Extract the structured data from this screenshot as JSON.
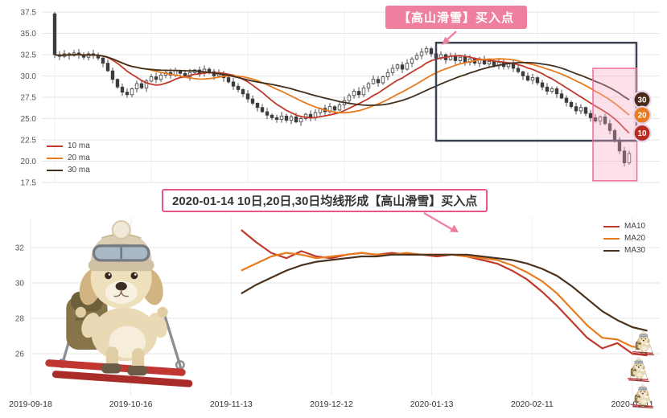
{
  "chart_data": [
    {
      "type": "candlestick",
      "title": "",
      "ylim": [
        17.5,
        37.5
      ],
      "yticks": [
        37.5,
        35.0,
        32.5,
        30.0,
        27.5,
        25.0,
        22.5,
        20.0,
        17.5
      ],
      "legend": [
        {
          "label": "10 ma",
          "color": "#c0392b"
        },
        {
          "label": "20 ma",
          "color": "#e87b1e"
        },
        {
          "label": "30 ma",
          "color": "#42301e"
        }
      ],
      "ma": [
        {
          "window": 10,
          "color": "#c0392b"
        },
        {
          "window": 20,
          "color": "#e87b1e"
        },
        {
          "window": 30,
          "color": "#42301e"
        }
      ],
      "first_candle": [
        37.3,
        37.5,
        32.1,
        32.5
      ],
      "closes": [
        32.5,
        32.3,
        32.6,
        32.4,
        32.7,
        32.5,
        32.2,
        32.6,
        32.4,
        32.1,
        31.5,
        30.6,
        29.6,
        28.7,
        28.1,
        27.8,
        28.5,
        29.1,
        28.6,
        29.4,
        29.9,
        29.6,
        30.1,
        30.4,
        30.1,
        30.6,
        30.3,
        29.9,
        30.4,
        30.7,
        30.3,
        30.8,
        30.5,
        30.0,
        30.3,
        29.8,
        29.3,
        28.8,
        28.4,
        27.9,
        27.3,
        26.8,
        26.3,
        25.8,
        25.4,
        25.1,
        24.9,
        25.3,
        24.8,
        25.2,
        24.6,
        25.0,
        25.5,
        25.1,
        25.7,
        26.2,
        25.8,
        26.4,
        26.0,
        26.6,
        27.1,
        27.7,
        28.2,
        27.8,
        28.6,
        29.1,
        29.6,
        29.2,
        29.9,
        30.4,
        30.9,
        31.3,
        30.8,
        31.5,
        32.0,
        32.4,
        32.8,
        33.2,
        32.6,
        32.1,
        32.5,
        31.9,
        32.3,
        31.8,
        32.2,
        31.6,
        32.0,
        31.5,
        31.9,
        31.4,
        31.7,
        31.2,
        31.6,
        31.1,
        31.4,
        30.9,
        30.5,
        30.0,
        29.5,
        29.8,
        29.2,
        28.7,
        28.2,
        28.5,
        27.9,
        27.4,
        26.9,
        26.4,
        25.9,
        26.3,
        25.6,
        25.1,
        24.7,
        25.2,
        24.4,
        23.6,
        22.5,
        21.2,
        19.8,
        20.9
      ],
      "highlight_rect": {
        "day_start": 79,
        "day_end": 120.5,
        "v_top": 33.9,
        "v_bottom": 22.4,
        "color": "#3d4350"
      },
      "highlight_band": {
        "day_start": 111.5,
        "day_end": 120.6,
        "v_top": 30.9,
        "v_bottom": 17.7,
        "fill": "#f7a8c4",
        "border": "#ef6a9b"
      },
      "badges": [
        {
          "label": "30",
          "color": "#4a2a18"
        },
        {
          "label": "20",
          "color": "#e87b1e"
        },
        {
          "label": "10",
          "color": "#b92d21"
        }
      ],
      "callout": {
        "text": "【高山滑雪】买入点",
        "bg": "#ee7f9e",
        "text_color": "#ffffff"
      }
    },
    {
      "type": "line",
      "yticks": [
        32,
        30,
        28,
        26
      ],
      "xticks": [
        {
          "label": "2019-09-18",
          "day": 0
        },
        {
          "label": "2019-10-16",
          "day": 20
        },
        {
          "label": "2019-11-13",
          "day": 40
        },
        {
          "label": "2019-12-12",
          "day": 60
        },
        {
          "label": "2020-01-13",
          "day": 80
        },
        {
          "label": "2020-02-11",
          "day": 100
        },
        {
          "label": "2020-03-11",
          "day": 120
        }
      ],
      "sample_days": [
        42,
        45,
        48,
        51,
        54,
        57,
        60,
        63,
        66,
        69,
        72,
        75,
        78,
        81,
        84,
        87,
        90,
        93,
        96,
        99,
        102,
        105,
        108,
        111,
        114,
        117,
        120,
        123
      ],
      "series": [
        {
          "name": "MA10",
          "color": "#c0392b",
          "values": [
            33.0,
            32.3,
            31.7,
            31.4,
            31.8,
            31.5,
            31.4,
            31.6,
            31.7,
            31.6,
            31.7,
            31.6,
            31.6,
            31.5,
            31.6,
            31.5,
            31.3,
            31.1,
            30.7,
            30.2,
            29.5,
            28.7,
            27.8,
            26.9,
            26.3,
            26.6,
            26.0,
            25.9
          ]
        },
        {
          "name": "MA20",
          "color": "#e87b1e",
          "values": [
            30.7,
            31.1,
            31.5,
            31.7,
            31.6,
            31.4,
            31.5,
            31.6,
            31.7,
            31.6,
            31.6,
            31.7,
            31.6,
            31.6,
            31.6,
            31.5,
            31.4,
            31.3,
            31.0,
            30.6,
            30.1,
            29.4,
            28.5,
            27.6,
            26.9,
            26.8,
            26.4,
            26.3
          ]
        },
        {
          "name": "MA30",
          "color": "#4a331f",
          "values": [
            29.4,
            29.9,
            30.3,
            30.7,
            31.0,
            31.2,
            31.3,
            31.4,
            31.5,
            31.5,
            31.6,
            31.6,
            31.6,
            31.6,
            31.6,
            31.6,
            31.5,
            31.4,
            31.3,
            31.1,
            30.8,
            30.4,
            29.8,
            29.1,
            28.4,
            27.9,
            27.5,
            27.3
          ]
        }
      ]
    }
  ],
  "annotation": {
    "text": "2020-01-14 10日,20日,30日均线形成【高山滑雪】买入点",
    "border_color": "#e8558a",
    "arrow_color": "#ee7f9e"
  },
  "illustration": {
    "ski_dog": "dog-on-skis-illustration",
    "mini_icons_count": 3
  }
}
